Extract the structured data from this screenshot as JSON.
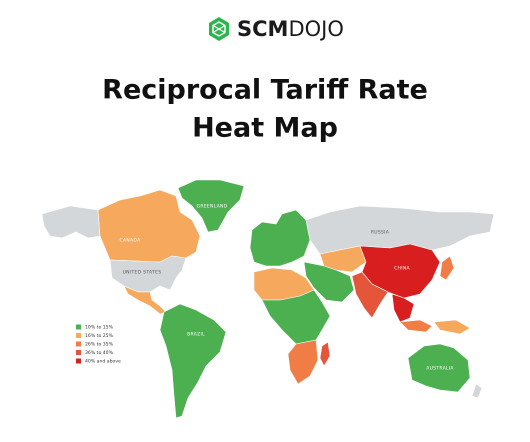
{
  "header": {
    "brand_bold": "SCM",
    "brand_light": "DOJO"
  },
  "title": {
    "line1": "Reciprocal Tariff Rate",
    "line2": "Heat Map"
  },
  "legend": [
    {
      "label": "10% to 15%",
      "color": "#4caf50"
    },
    {
      "label": "16% to 25%",
      "color": "#f6a85c"
    },
    {
      "label": "26% to 35%",
      "color": "#ef7d45"
    },
    {
      "label": "36% to 40%",
      "color": "#e4553a"
    },
    {
      "label": "40% and above",
      "color": "#d81e1e"
    }
  ],
  "map_labels": [
    "GREENLAND",
    "CANADA",
    "UNITED STATES",
    "RUSSIA",
    "CHINA",
    "BRAZIL",
    "AUSTRALIA"
  ]
}
